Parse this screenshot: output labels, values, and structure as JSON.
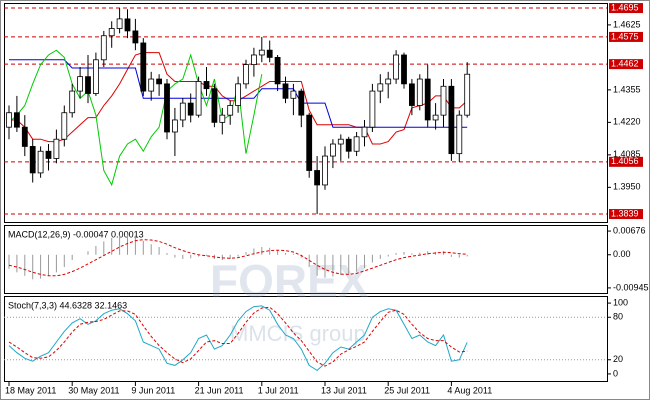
{
  "chart_data": [
    {
      "type": "candlestick",
      "up_color": "#ffffff",
      "down_color": "#000000",
      "ylim": [
        1.3806,
        1.4716
      ],
      "yticks": [
        1.4625,
        1.4355,
        {
          "value": 1.422,
          "label": "1.4220"
        },
        1.4085,
        {
          "value": 1.395,
          "label": "1.3950"
        }
      ],
      "levels": [
        1.4695,
        1.4575,
        1.4462,
        1.4056,
        1.3839
      ],
      "level_color": "#cc0000",
      "open": [
        1.42,
        1.426,
        1.42,
        1.412,
        1.401,
        1.41,
        1.407,
        1.415,
        1.426,
        1.435,
        1.441,
        1.434,
        1.448,
        1.458,
        1.461,
        1.465,
        1.46,
        1.455,
        1.435,
        1.44,
        1.438,
        1.418,
        1.423,
        1.43,
        1.425,
        1.439,
        1.436,
        1.422,
        1.425,
        1.429,
        1.438,
        1.446,
        1.45,
        1.452,
        1.449,
        1.438,
        1.432,
        1.435,
        1.425,
        1.402,
        1.396,
        1.408,
        1.413,
        1.415,
        1.41,
        1.416,
        1.42,
        1.435,
        1.438,
        1.44,
        1.45,
        1.438,
        1.429,
        1.44,
        1.423,
        1.425,
        1.437,
        1.409,
        1.425
      ],
      "high": [
        1.429,
        1.433,
        1.425,
        1.415,
        1.412,
        1.413,
        1.419,
        1.429,
        1.438,
        1.445,
        1.45,
        1.451,
        1.46,
        1.464,
        1.4695,
        1.469,
        1.465,
        1.457,
        1.443,
        1.442,
        1.44,
        1.428,
        1.432,
        1.434,
        1.441,
        1.445,
        1.438,
        1.428,
        1.431,
        1.441,
        1.448,
        1.453,
        1.4575,
        1.456,
        1.45,
        1.441,
        1.438,
        1.436,
        1.426,
        1.408,
        1.412,
        1.415,
        1.417,
        1.416,
        1.418,
        1.423,
        1.438,
        1.442,
        1.443,
        1.452,
        1.451,
        1.44,
        1.442,
        1.446,
        1.43,
        1.44,
        1.44,
        1.427,
        1.447
      ],
      "low": [
        1.415,
        1.418,
        1.408,
        1.397,
        1.399,
        1.402,
        1.405,
        1.412,
        1.424,
        1.432,
        1.43,
        1.433,
        1.445,
        1.453,
        1.459,
        1.457,
        1.452,
        1.433,
        1.431,
        1.433,
        1.415,
        1.408,
        1.42,
        1.422,
        1.424,
        1.433,
        1.42,
        1.417,
        1.421,
        1.426,
        1.436,
        1.441,
        1.447,
        1.447,
        1.435,
        1.43,
        1.425,
        1.42,
        1.399,
        1.3839,
        1.394,
        1.403,
        1.406,
        1.407,
        1.408,
        1.412,
        1.418,
        1.43,
        1.432,
        1.438,
        1.436,
        1.425,
        1.427,
        1.42,
        1.419,
        1.42,
        1.406,
        1.4056,
        1.424
      ],
      "close": [
        1.426,
        1.42,
        1.412,
        1.401,
        1.41,
        1.407,
        1.415,
        1.426,
        1.435,
        1.441,
        1.434,
        1.448,
        1.458,
        1.461,
        1.465,
        1.46,
        1.455,
        1.435,
        1.44,
        1.438,
        1.418,
        1.423,
        1.43,
        1.425,
        1.439,
        1.436,
        1.422,
        1.425,
        1.429,
        1.438,
        1.446,
        1.45,
        1.452,
        1.449,
        1.438,
        1.432,
        1.435,
        1.425,
        1.402,
        1.396,
        1.408,
        1.413,
        1.415,
        1.41,
        1.416,
        1.42,
        1.435,
        1.438,
        1.44,
        1.45,
        1.438,
        1.429,
        1.44,
        1.423,
        1.425,
        1.437,
        1.409,
        1.425,
        1.442
      ],
      "lines": [
        {
          "color": "#dd0000",
          "values": [
            1.423,
            1.423,
            1.42,
            1.415,
            1.415,
            1.414,
            1.414,
            1.415,
            1.418,
            1.421,
            1.424,
            1.424,
            1.429,
            1.433,
            1.438,
            1.444,
            1.45,
            1.451,
            1.451,
            1.451,
            1.442,
            1.439,
            1.439,
            1.439,
            1.439,
            1.437,
            1.437,
            1.433,
            1.431,
            1.431,
            1.433,
            1.435,
            1.437,
            1.439,
            1.439,
            1.439,
            1.439,
            1.439,
            1.427,
            1.421,
            1.421,
            1.421,
            1.421,
            1.421,
            1.42,
            1.42,
            1.413,
            1.413,
            1.414,
            1.418,
            1.419,
            1.428,
            1.429,
            1.43,
            1.433,
            1.433,
            1.428,
            1.428,
            1.431
          ]
        },
        {
          "color": "#0000dd",
          "values": [
            1.448,
            1.448,
            1.448,
            1.448,
            1.448,
            1.448,
            1.448,
            1.448,
            1.4446,
            1.4446,
            1.4446,
            1.4446,
            1.4446,
            1.4446,
            1.4446,
            1.4446,
            1.4446,
            1.432,
            1.432,
            1.432,
            1.432,
            1.432,
            1.432,
            1.432,
            1.432,
            1.432,
            1.432,
            1.432,
            1.432,
            1.432,
            1.432,
            1.432,
            1.436,
            1.436,
            1.436,
            1.436,
            1.436,
            1.43,
            1.43,
            1.43,
            1.43,
            1.42,
            1.42,
            1.42,
            1.42,
            1.42,
            1.42,
            1.42,
            1.42,
            1.42,
            1.42,
            1.42,
            1.42,
            1.42,
            1.42,
            1.42,
            1.42,
            1.42,
            1.42
          ]
        },
        {
          "color": "#00cc00",
          "values": [
            1.422,
            1.425,
            1.429,
            1.438,
            1.446,
            1.45,
            1.452,
            1.449,
            1.438,
            1.432,
            1.435,
            1.425,
            1.402,
            1.396,
            1.408,
            1.413,
            1.415,
            1.41,
            1.416,
            1.42,
            1.435,
            1.438,
            1.44,
            1.45,
            1.438,
            1.429,
            1.44,
            1.423,
            1.425,
            1.437,
            1.409,
            1.425,
            1.442
          ]
        }
      ]
    },
    {
      "type": "macd",
      "title": "MACD(12,26,9) -0.00047 0.00013",
      "ylim": [
        -0.0109,
        0.0082
      ],
      "yticks": [
        0.00676,
        {
          "value": 0,
          "label": "0.00"
        },
        -0.00945
      ],
      "bar_color": "#999999",
      "signal_color": "#dd0000",
      "values": [
        -0.004,
        -0.005,
        -0.006,
        -0.007,
        -0.0068,
        -0.006,
        -0.005,
        -0.0035,
        -0.0015,
        0.0,
        0.001,
        0.0025,
        0.0038,
        0.0048,
        0.0055,
        0.0058,
        0.0055,
        0.004,
        0.003,
        0.0022,
        0.0005,
        -0.0008,
        -0.0012,
        -0.001,
        -0.0005,
        -0.0003,
        -0.0012,
        -0.0015,
        -0.0012,
        -0.0005,
        0.0008,
        0.0018,
        0.0022,
        0.002,
        0.0012,
        0.0005,
        0.0003,
        -0.0008,
        -0.0035,
        -0.006,
        -0.0065,
        -0.0062,
        -0.0058,
        -0.0055,
        -0.0048,
        -0.0038,
        -0.0022,
        -0.0012,
        -0.0005,
        0.0005,
        0.0008,
        0.0004,
        0.0006,
        0.001,
        0.0008,
        0.001,
        -0.0006,
        -0.0008,
        -0.00047
      ],
      "signal": [
        -0.003,
        -0.0035,
        -0.0042,
        -0.005,
        -0.0056,
        -0.006,
        -0.006,
        -0.0056,
        -0.0048,
        -0.0038,
        -0.0026,
        -0.0014,
        -0.0002,
        0.001,
        0.0022,
        0.0032,
        0.004,
        0.0043,
        0.0042,
        0.0038,
        0.003,
        0.002,
        0.0012,
        0.0005,
        0.0,
        -0.0003,
        -0.0006,
        -0.0009,
        -0.001,
        -0.0008,
        -0.0003,
        0.0003,
        0.0008,
        0.0012,
        0.0013,
        0.0012,
        0.0008,
        -0.0002,
        -0.0016,
        -0.003,
        -0.0042,
        -0.005,
        -0.0055,
        -0.0056,
        -0.0053,
        -0.0046,
        -0.0038,
        -0.003,
        -0.0022,
        -0.0014,
        -0.0008,
        -0.0004,
        -0.0001,
        0.0003,
        0.0005,
        0.0007,
        0.0006,
        0.0003,
        0.00013
      ]
    },
    {
      "type": "stochastic",
      "title": "Stoch(7,3,3) 44.6328 32.1463",
      "ylim": [
        -10,
        108.6
      ],
      "yticks": [
        100,
        80,
        20,
        0
      ],
      "grid_levels": [
        80,
        20
      ],
      "main_color": "#20a8c8",
      "signal_color": "#dd0000",
      "categories": [
        "18 May 2011",
        null,
        null,
        null,
        null,
        null,
        null,
        null,
        "30 May 2011",
        null,
        null,
        null,
        null,
        null,
        null,
        null,
        "9 Jun 2011",
        null,
        null,
        null,
        null,
        null,
        null,
        null,
        "21 Jun 2011",
        null,
        null,
        null,
        null,
        null,
        null,
        null,
        "1 Jul 2011",
        null,
        null,
        null,
        null,
        null,
        null,
        null,
        "13 Jul 2011",
        null,
        null,
        null,
        null,
        null,
        null,
        null,
        "25 Jul 2011",
        null,
        null,
        null,
        null,
        null,
        null,
        null,
        "4 Aug 2011",
        null,
        null
      ],
      "values": [
        40,
        30,
        22,
        18,
        25,
        30,
        45,
        60,
        72,
        78,
        70,
        75,
        85,
        90,
        92,
        85,
        75,
        45,
        40,
        35,
        15,
        12,
        20,
        30,
        50,
        55,
        35,
        40,
        55,
        75,
        88,
        95,
        96,
        90,
        70,
        55,
        50,
        35,
        12,
        5,
        15,
        30,
        38,
        35,
        45,
        55,
        80,
        88,
        92,
        90,
        70,
        50,
        55,
        45,
        40,
        55,
        18,
        20,
        44.6328
      ],
      "signal": [
        45,
        38,
        30,
        23,
        22,
        24,
        33,
        45,
        59,
        70,
        73,
        74,
        77,
        83,
        89,
        89,
        84,
        68,
        53,
        40,
        30,
        21,
        16,
        21,
        33,
        45,
        47,
        43,
        43,
        57,
        73,
        86,
        93,
        94,
        85,
        72,
        58,
        47,
        32,
        17,
        11,
        17,
        28,
        34,
        39,
        45,
        60,
        74,
        87,
        90,
        84,
        70,
        58,
        50,
        47,
        47,
        38,
        31,
        32.1463
      ]
    }
  ],
  "watermark": {
    "brand": "FOREX",
    "group": "MMCIS group"
  }
}
